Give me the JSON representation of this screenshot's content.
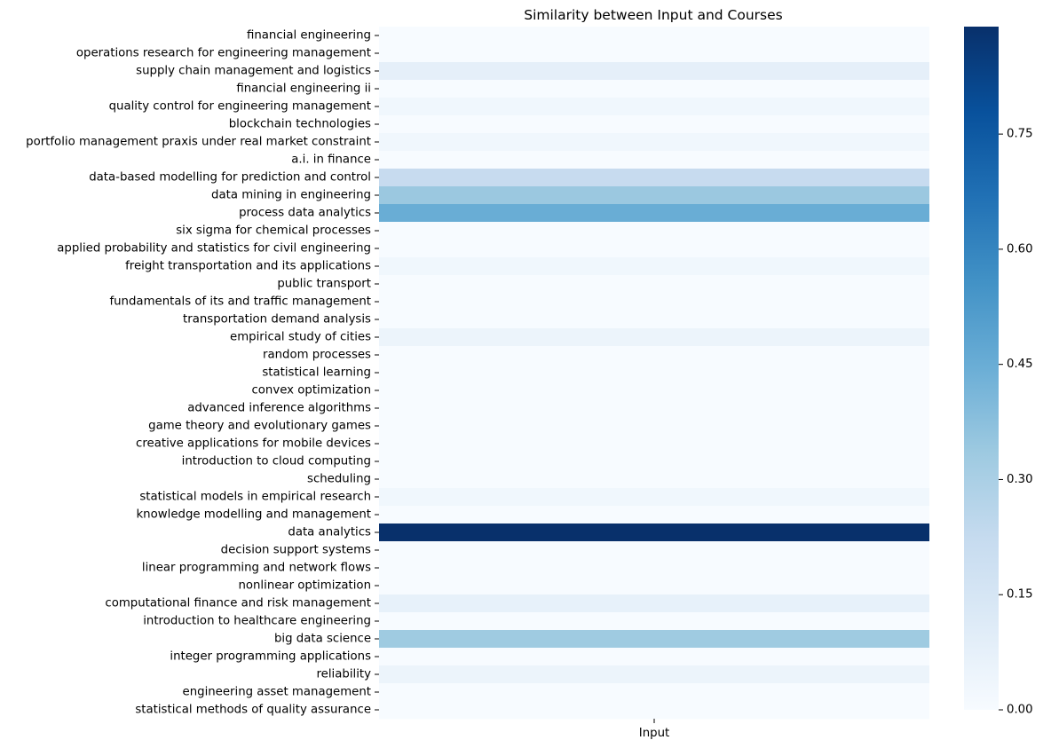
{
  "chart_data": {
    "type": "heatmap",
    "title": "Similarity between Input and Courses",
    "xlabel": "",
    "ylabel": "",
    "columns": [
      "Input"
    ],
    "rows": [
      "financial engineering",
      "operations research for engineering management",
      "supply chain management and logistics",
      "financial engineering ii",
      "quality control for engineering management",
      "blockchain technologies",
      "portfolio management praxis under real market constraint",
      "a.i. in finance",
      "data-based modelling for prediction and control",
      "data mining in engineering",
      "process data analytics",
      "six sigma for chemical processes",
      "applied probability and statistics for civil engineering",
      "freight transportation and its applications",
      "public transport",
      "fundamentals of its and traffic management",
      "transportation demand analysis",
      "empirical study of cities",
      "random processes",
      "statistical learning",
      "convex optimization",
      "advanced inference algorithms",
      "game theory and evolutionary games",
      "creative applications for mobile devices",
      "introduction to cloud computing",
      "scheduling",
      "statistical models in empirical research",
      "knowledge modelling and management",
      "data analytics",
      "decision support systems",
      "linear programming and network flows",
      "nonlinear optimization",
      "computational finance and risk management",
      "introduction to healthcare engineering",
      "big data science",
      "integer programming applications",
      "reliability",
      "engineering asset management",
      "statistical methods of quality assurance"
    ],
    "values": [
      0.0,
      0.0,
      0.08,
      0.0,
      0.03,
      0.0,
      0.03,
      0.0,
      0.22,
      0.34,
      0.45,
      0.0,
      0.0,
      0.03,
      0.0,
      0.0,
      0.0,
      0.05,
      0.0,
      0.0,
      0.0,
      0.0,
      0.0,
      0.0,
      0.0,
      0.0,
      0.03,
      0.0,
      0.89,
      0.0,
      0.0,
      0.0,
      0.07,
      0.0,
      0.33,
      0.0,
      0.05,
      0.0,
      0.0
    ],
    "colorbar": {
      "min": 0.0,
      "max": 0.89,
      "ticks": [
        0.0,
        0.15,
        0.3,
        0.45,
        0.6,
        0.75
      ],
      "tick_labels": [
        "0.00",
        "0.15",
        "0.30",
        "0.45",
        "0.60",
        "0.75"
      ],
      "colormap": "Blues",
      "colormap_stops": [
        "#f7fbff",
        "#deebf7",
        "#c6dbef",
        "#9ecae1",
        "#6baed6",
        "#4292c6",
        "#2171b5",
        "#08519c",
        "#08306b"
      ]
    },
    "grid": false
  }
}
